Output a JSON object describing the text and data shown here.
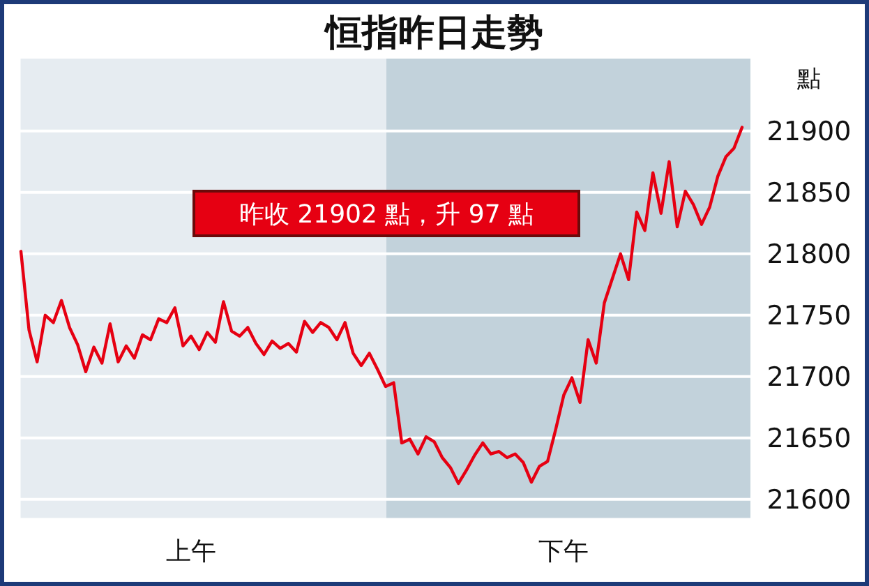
{
  "chart_data": {
    "type": "line",
    "title": "恒指昨日走勢",
    "ylabel": "點",
    "annotations": [
      "昨收 21902 點，升 97 點"
    ],
    "categories": [
      null,
      null,
      null,
      null,
      null,
      null,
      null,
      null,
      null,
      null,
      null,
      null,
      null,
      null,
      null,
      null,
      null,
      null,
      null,
      null,
      null,
      "上午",
      null,
      null,
      null,
      null,
      null,
      null,
      null,
      null,
      null,
      null,
      null,
      null,
      null,
      null,
      null,
      null,
      null,
      null,
      null,
      null,
      null,
      null,
      null,
      null,
      null,
      null,
      null,
      null,
      null,
      null,
      null,
      null,
      null,
      null,
      null,
      null,
      null,
      null,
      null,
      null,
      null,
      null,
      null,
      null,
      null,
      "下午",
      null,
      null,
      null,
      null,
      null,
      null,
      null,
      null,
      null,
      null,
      null,
      null,
      null,
      null,
      null,
      null,
      null,
      null,
      null,
      null,
      null,
      null
    ],
    "ylim": [
      21584,
      21959
    ],
    "yticks": [
      21600,
      21650,
      21700,
      21750,
      21800,
      21850,
      21900
    ],
    "grid": "y",
    "series": [
      {
        "color": "#e60012",
        "values": [
          21802,
          21738,
          21712,
          21750,
          21744,
          21762,
          21740,
          21726,
          21704,
          21724,
          21711,
          21743,
          21712,
          21725,
          21715,
          21734,
          21730,
          21747,
          21744,
          21756,
          21725,
          21733,
          21722,
          21736,
          21728,
          21761,
          21737,
          21733,
          21740,
          21727,
          21718,
          21729,
          21723,
          21727,
          21720,
          21745,
          21736,
          21744,
          21740,
          21730,
          21744,
          21719,
          21709,
          21719,
          21706,
          21692,
          21695,
          21646,
          21649,
          21637,
          21651,
          21647,
          21634,
          21626,
          21613,
          21624,
          21636,
          21646,
          21637,
          21639,
          21634,
          21637,
          21630,
          21614,
          21627,
          21631,
          21657,
          21685,
          21699,
          21679,
          21730,
          21711,
          21760,
          21780,
          21800,
          21779,
          21834,
          21819,
          21866,
          21833,
          21875,
          21822,
          21851,
          21840,
          21824,
          21838,
          21863,
          21879,
          21886,
          21903
        ]
      }
    ]
  }
}
